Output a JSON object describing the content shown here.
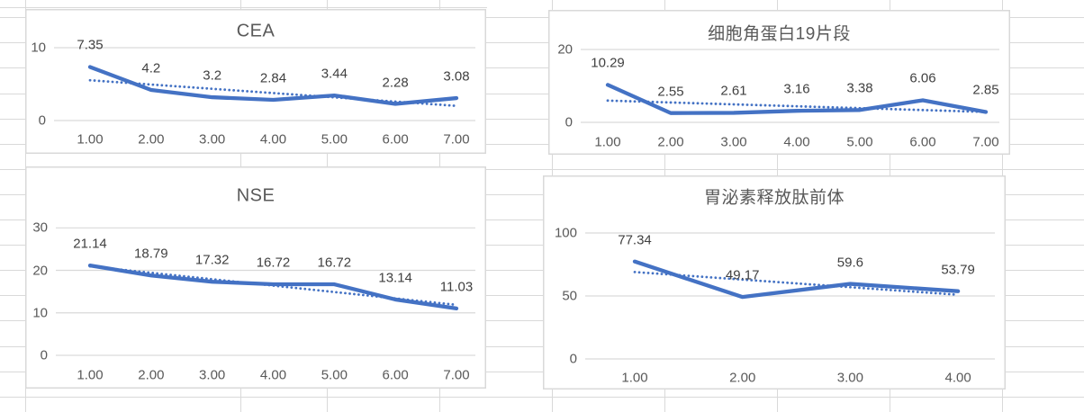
{
  "sheet": {
    "background": "#ffffff",
    "gridline_color": "#d9d9d9"
  },
  "chart_style": {
    "series_color": "#4472c4",
    "trend_color": "#4472c4",
    "plot_gridline_color": "#d9d9d9",
    "border_color": "#d9d9d9",
    "title_color": "#595959",
    "tick_color": "#595959",
    "data_label_color": "#404040",
    "background": "#ffffff"
  },
  "chart_data": [
    {
      "id": "cea",
      "type": "line",
      "title": "CEA",
      "x": [
        1,
        2,
        3,
        4,
        5,
        6,
        7
      ],
      "categories": [
        "1.00",
        "2.00",
        "3.00",
        "4.00",
        "5.00",
        "6.00",
        "7.00"
      ],
      "values": [
        7.35,
        4.2,
        3.2,
        2.84,
        3.44,
        2.28,
        3.08
      ],
      "data_labels": [
        "7.35",
        "4.2",
        "3.2",
        "2.84",
        "3.44",
        "2.28",
        "3.08"
      ],
      "ylim": [
        0,
        10
      ],
      "yticks": [
        0,
        10
      ],
      "ytick_labels": [
        "0",
        "10"
      ],
      "trendline": "linear_dotted",
      "legend": false
    },
    {
      "id": "ck19-fragment",
      "type": "line",
      "title": "细胞角蛋白19片段",
      "x": [
        1,
        2,
        3,
        4,
        5,
        6,
        7
      ],
      "categories": [
        "1.00",
        "2.00",
        "3.00",
        "4.00",
        "5.00",
        "6.00",
        "7.00"
      ],
      "values": [
        10.29,
        2.55,
        2.61,
        3.16,
        3.38,
        6.06,
        2.85
      ],
      "data_labels": [
        "10.29",
        "2.55",
        "2.61",
        "3.16",
        "3.38",
        "6.06",
        "2.85"
      ],
      "ylim": [
        0,
        20
      ],
      "yticks": [
        0,
        20
      ],
      "ytick_labels": [
        "0",
        "20"
      ],
      "trendline": "linear_dotted",
      "legend": false
    },
    {
      "id": "nse",
      "type": "line",
      "title": "NSE",
      "x": [
        1,
        2,
        3,
        4,
        5,
        6,
        7
      ],
      "categories": [
        "1.00",
        "2.00",
        "3.00",
        "4.00",
        "5.00",
        "6.00",
        "7.00"
      ],
      "values": [
        21.14,
        18.79,
        17.32,
        16.72,
        16.72,
        13.14,
        11.03
      ],
      "data_labels": [
        "21.14",
        "18.79",
        "17.32",
        "16.72",
        "16.72",
        "13.14",
        "11.03"
      ],
      "ylim": [
        0,
        30
      ],
      "yticks": [
        0,
        10,
        20,
        30
      ],
      "ytick_labels": [
        "0",
        "10",
        "20",
        "30"
      ],
      "trendline": "linear_dotted",
      "legend": false
    },
    {
      "id": "progrp",
      "type": "line",
      "title": "胃泌素释放肽前体",
      "x": [
        1,
        2,
        3,
        4
      ],
      "categories": [
        "1.00",
        "2.00",
        "3.00",
        "4.00"
      ],
      "values": [
        77.34,
        49.17,
        59.6,
        53.79
      ],
      "data_labels": [
        "77.34",
        "49.17",
        "59.6",
        "53.79"
      ],
      "ylim": [
        0,
        100
      ],
      "yticks": [
        0,
        50,
        100
      ],
      "ytick_labels": [
        "0",
        "50",
        "100"
      ],
      "trendline": "linear_dotted",
      "legend": false
    }
  ]
}
